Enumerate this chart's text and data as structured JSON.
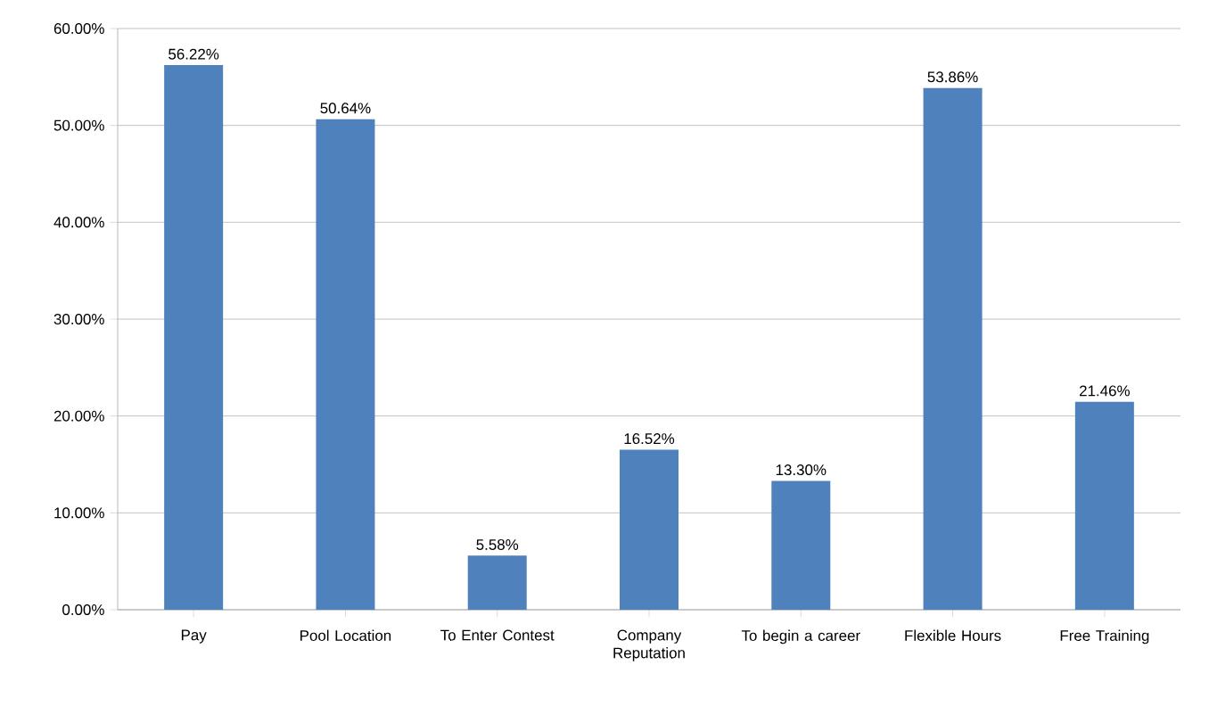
{
  "chart_data": {
    "type": "bar",
    "categories": [
      "Pay",
      "Pool Location",
      "To Enter Contest",
      "Company Reputation",
      "To begin a career",
      "Flexible Hours",
      "Free Training"
    ],
    "values": [
      56.22,
      50.64,
      5.58,
      16.52,
      13.3,
      53.86,
      21.46
    ],
    "value_labels": [
      "56.22%",
      "50.64%",
      "5.58%",
      "16.52%",
      "13.30%",
      "53.86%",
      "21.46%"
    ],
    "color": "#4f81bd",
    "ylim": [
      0,
      60
    ],
    "yticks": [
      {
        "value": 0,
        "label": "0.00%"
      },
      {
        "value": 10,
        "label": "10.00%"
      },
      {
        "value": 20,
        "label": "20.00%"
      },
      {
        "value": 30,
        "label": "30.00%"
      },
      {
        "value": 40,
        "label": "40.00%"
      },
      {
        "value": 50,
        "label": "50.00%"
      },
      {
        "value": 60,
        "label": "60.00%"
      }
    ],
    "grid": "y"
  }
}
